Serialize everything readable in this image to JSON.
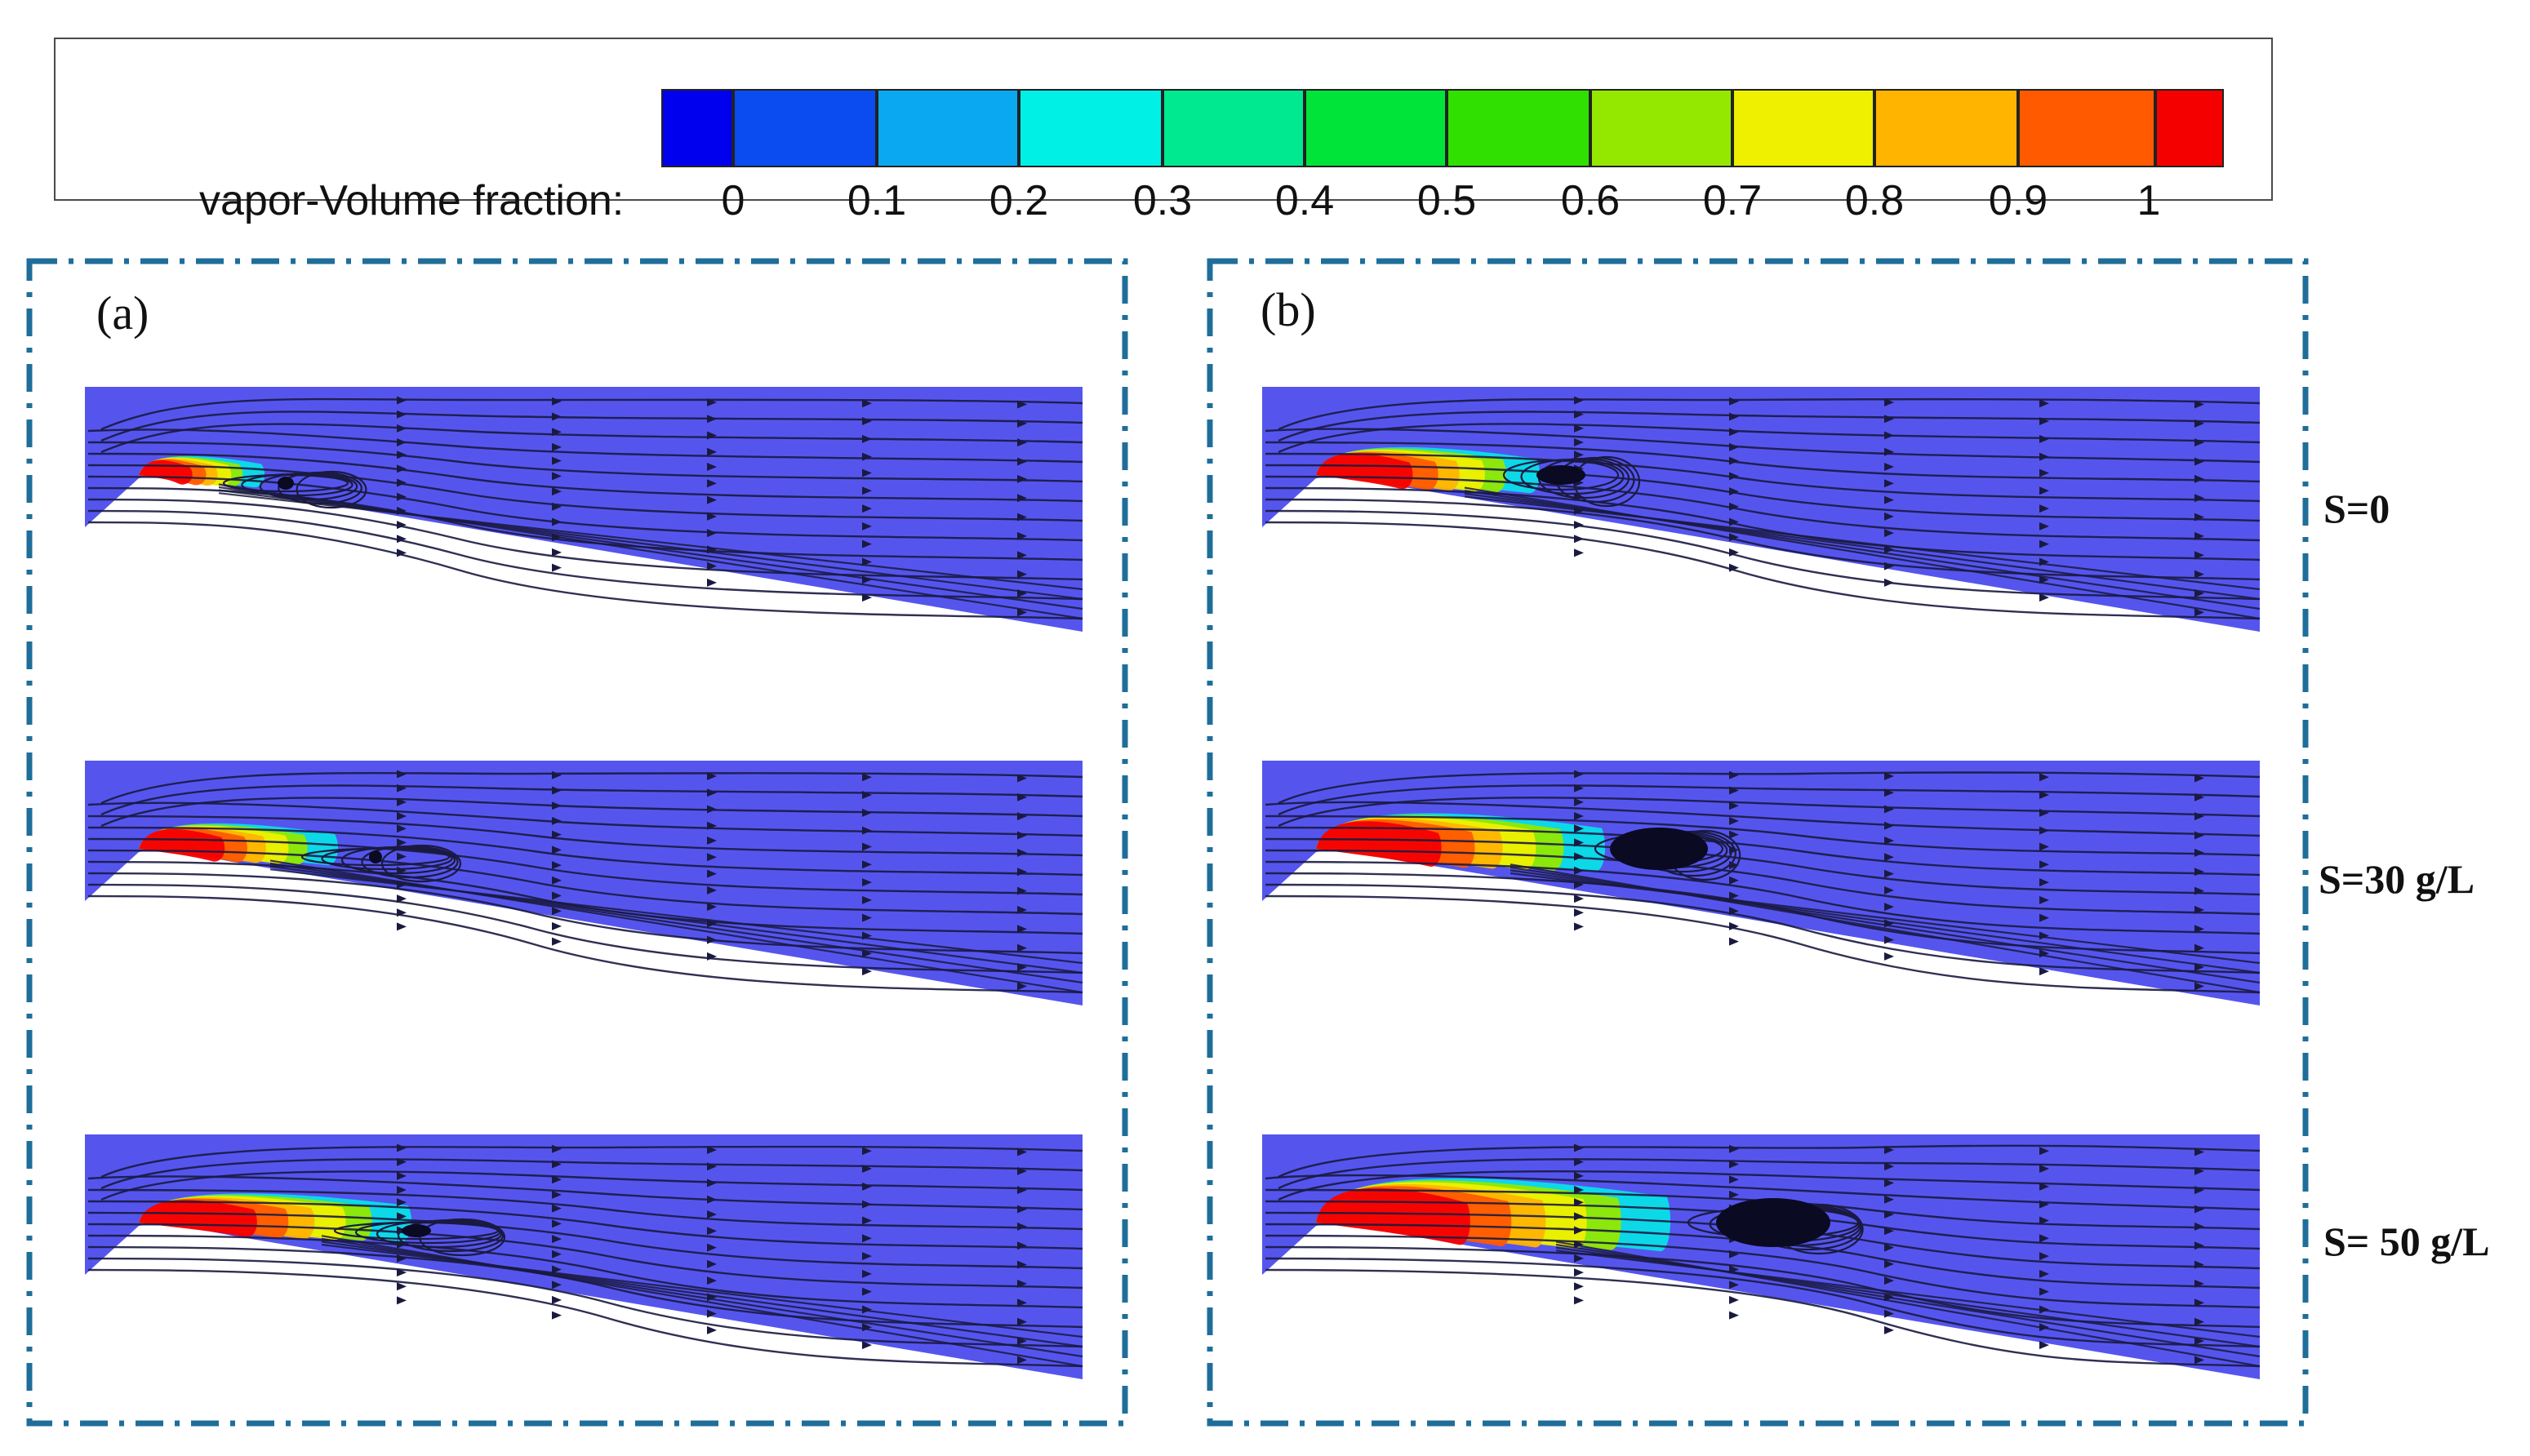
{
  "legend": {
    "title": "vapor-Volume fraction:",
    "ticks": [
      "0",
      "0.1",
      "0.2",
      "0.3",
      "0.4",
      "0.5",
      "0.6",
      "0.7",
      "0.8",
      "0.9",
      "1"
    ],
    "colors": [
      "#0000ee",
      "#0a4cf0",
      "#0aa8f0",
      "#00f0e6",
      "#00e890",
      "#00e43a",
      "#2fe000",
      "#94e800",
      "#eef000",
      "#ffb400",
      "#ff5a00",
      "#f50000"
    ]
  },
  "panels": [
    {
      "label": "(a)"
    },
    {
      "label": "(b)"
    }
  ],
  "conditions": [
    "S=0",
    "S=30 g/L",
    "S= 50 g/L"
  ],
  "colors": {
    "field": "#5555ee",
    "frame": "#1f6e9a",
    "streamline": "#1a1a40"
  }
}
